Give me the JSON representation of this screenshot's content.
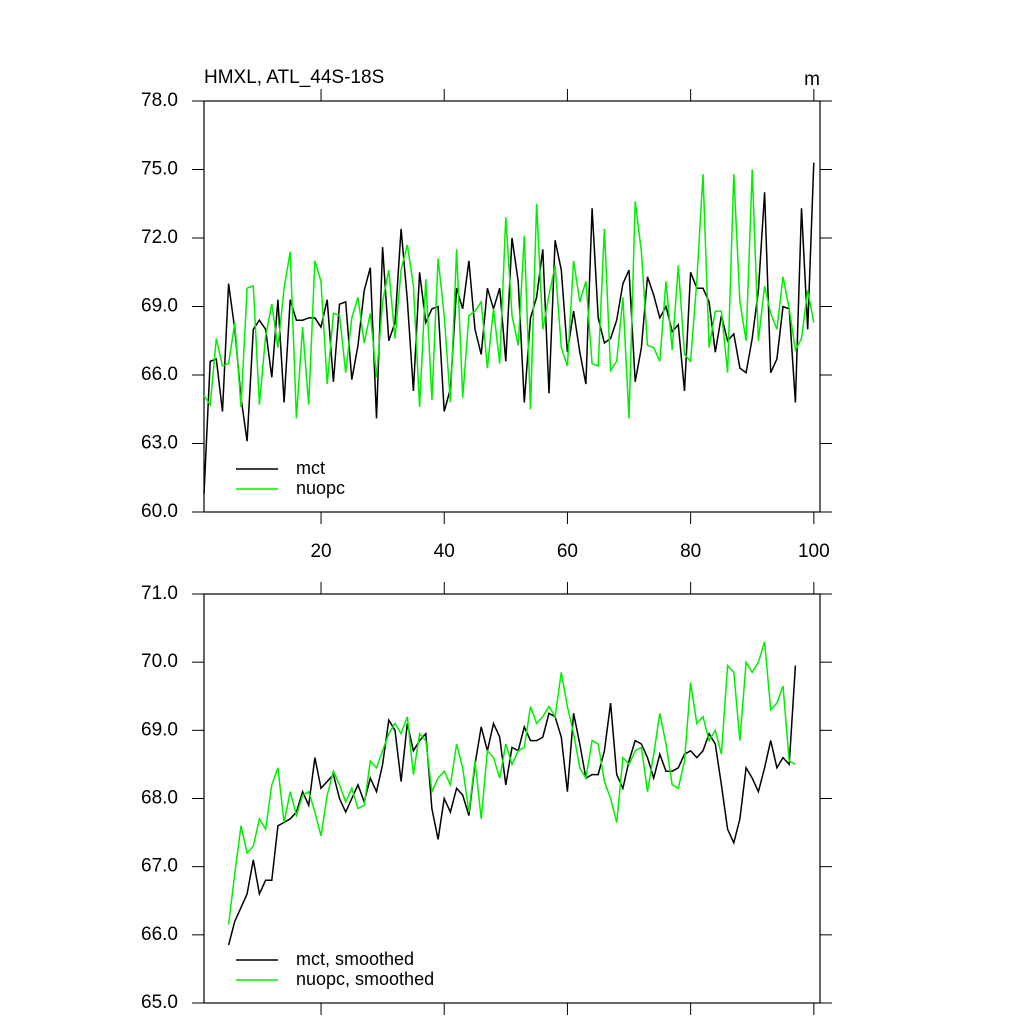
{
  "chart_data": [
    {
      "type": "line",
      "title": "HMXL, ATL_44S-18S",
      "units": "m",
      "x": [
        1,
        2,
        3,
        4,
        5,
        6,
        7,
        8,
        9,
        10,
        11,
        12,
        13,
        14,
        15,
        16,
        17,
        18,
        19,
        20,
        21,
        22,
        23,
        24,
        25,
        26,
        27,
        28,
        29,
        30,
        31,
        32,
        33,
        34,
        35,
        36,
        37,
        38,
        39,
        40,
        41,
        42,
        43,
        44,
        45,
        46,
        47,
        48,
        49,
        50,
        51,
        52,
        53,
        54,
        55,
        56,
        57,
        58,
        59,
        60,
        61,
        62,
        63,
        64,
        65,
        66,
        67,
        68,
        69,
        70,
        71,
        72,
        73,
        74,
        75,
        76,
        77,
        78,
        79,
        80,
        81,
        82,
        83,
        84,
        85,
        86,
        87,
        88,
        89,
        90,
        91,
        92,
        93,
        94,
        95,
        96,
        97,
        98,
        99,
        100
      ],
      "series": [
        {
          "name": "mct",
          "color": "#000000",
          "values": [
            60.8,
            66.6,
            66.7,
            64.4,
            70.0,
            68.0,
            65.0,
            63.1,
            68.0,
            68.4,
            68.0,
            65.9,
            69.3,
            64.8,
            69.3,
            68.4,
            68.4,
            68.5,
            68.5,
            68.1,
            69.3,
            65.7,
            69.1,
            69.2,
            65.8,
            67.3,
            69.7,
            70.7,
            64.1,
            71.6,
            67.5,
            68.3,
            72.4,
            69.3,
            65.3,
            70.5,
            68.3,
            68.9,
            69.0,
            64.4,
            65.4,
            69.8,
            68.9,
            71.0,
            68.0,
            66.9,
            69.8,
            68.9,
            69.8,
            66.6,
            72.0,
            70.1,
            64.8,
            68.5,
            69.4,
            71.5,
            65.2,
            71.9,
            70.6,
            67.0,
            68.8,
            67.0,
            65.6,
            73.3,
            68.5,
            67.4,
            67.6,
            68.4,
            70.0,
            70.6,
            65.7,
            67.2,
            70.3,
            69.5,
            68.5,
            69.0,
            67.9,
            68.2,
            65.3,
            70.5,
            69.8,
            69.8,
            69.2,
            67.0,
            68.6,
            67.5,
            67.8,
            66.3,
            66.1,
            67.6,
            69.7,
            74.0,
            66.1,
            66.7,
            69.0,
            68.9,
            64.8,
            73.3,
            68.0,
            75.3
          ]
        },
        {
          "name": "nuopc",
          "color": "#00ee00",
          "values": [
            65.1,
            64.7,
            67.6,
            66.4,
            66.5,
            68.3,
            64.6,
            69.8,
            69.9,
            64.7,
            67.7,
            69.1,
            67.2,
            69.8,
            71.4,
            64.1,
            68.1,
            64.7,
            71.0,
            70.1,
            65.6,
            68.7,
            68.6,
            66.1,
            68.5,
            69.4,
            67.4,
            68.7,
            65.9,
            69.2,
            70.6,
            67.6,
            70.6,
            71.7,
            69.9,
            64.6,
            70.2,
            64.9,
            71.1,
            68.6,
            64.8,
            71.5,
            65.0,
            68.6,
            68.8,
            69.2,
            66.3,
            68.9,
            66.5,
            72.9,
            68.6,
            67.3,
            72.1,
            64.5,
            73.5,
            68.0,
            69.5,
            70.8,
            67.2,
            66.4,
            71.0,
            69.2,
            70.1,
            66.5,
            66.4,
            72.4,
            66.2,
            66.6,
            69.4,
            64.1,
            73.6,
            71.4,
            67.3,
            67.2,
            66.6,
            70.1,
            67.1,
            70.8,
            66.9,
            66.6,
            70.1,
            74.8,
            67.2,
            68.8,
            68.8,
            66.1,
            74.8,
            69.2,
            67.5,
            75.0,
            67.5,
            69.9,
            68.7,
            68.0,
            70.3,
            68.9,
            67.1,
            67.6,
            69.7,
            68.3
          ]
        }
      ],
      "xlim": [
        1,
        101
      ],
      "xticks": [
        20,
        40,
        60,
        80,
        100
      ],
      "xtick_labels": true,
      "ylim": [
        60,
        78
      ],
      "yticks": [
        {
          "value": 60,
          "label": "60.0"
        },
        {
          "value": 63,
          "label": "63.0"
        },
        {
          "value": 66,
          "label": "66.0"
        },
        {
          "value": 69,
          "label": "69.0"
        },
        {
          "value": 72,
          "label": "72.0"
        },
        {
          "value": 75,
          "label": "75.0"
        },
        {
          "value": 78,
          "label": "78.0"
        }
      ],
      "legend": "lower left"
    },
    {
      "type": "line",
      "x": [
        5,
        6,
        7,
        8,
        9,
        10,
        11,
        12,
        13,
        14,
        15,
        16,
        17,
        18,
        19,
        20,
        21,
        22,
        23,
        24,
        25,
        26,
        27,
        28,
        29,
        30,
        31,
        32,
        33,
        34,
        35,
        36,
        37,
        38,
        39,
        40,
        41,
        42,
        43,
        44,
        45,
        46,
        47,
        48,
        49,
        50,
        51,
        52,
        53,
        54,
        55,
        56,
        57,
        58,
        59,
        60,
        61,
        62,
        63,
        64,
        65,
        66,
        67,
        68,
        69,
        70,
        71,
        72,
        73,
        74,
        75,
        76,
        77,
        78,
        79,
        80,
        81,
        82,
        83,
        84,
        85,
        86,
        87,
        88,
        89,
        90,
        91,
        92,
        93,
        94,
        95,
        96,
        97
      ],
      "series": [
        {
          "name": "mct, smoothed",
          "color": "#000000",
          "values": [
            65.85,
            66.2,
            66.4,
            66.6,
            67.1,
            66.6,
            66.8,
            66.8,
            67.6,
            67.65,
            67.7,
            67.8,
            68.1,
            67.9,
            68.6,
            68.15,
            68.25,
            68.35,
            68.0,
            67.8,
            68.0,
            68.2,
            67.95,
            68.3,
            68.1,
            68.5,
            69.15,
            69.0,
            68.25,
            69.1,
            68.7,
            68.85,
            68.95,
            67.85,
            67.4,
            68.0,
            67.8,
            68.15,
            68.05,
            67.75,
            68.5,
            69.05,
            68.7,
            69.1,
            68.9,
            68.2,
            68.75,
            68.7,
            69.05,
            68.85,
            68.85,
            68.9,
            69.25,
            69.2,
            68.9,
            68.1,
            69.25,
            68.8,
            68.3,
            68.35,
            68.35,
            68.7,
            69.4,
            68.35,
            68.15,
            68.55,
            68.85,
            68.8,
            68.6,
            68.3,
            68.65,
            68.4,
            68.4,
            68.45,
            68.65,
            68.7,
            68.6,
            68.7,
            68.95,
            68.8,
            68.2,
            67.55,
            67.35,
            67.7,
            68.45,
            68.3,
            68.1,
            68.45,
            68.85,
            68.45,
            68.6,
            68.5,
            69.95
          ]
        },
        {
          "name": "nuopc, smoothed",
          "color": "#00ee00",
          "values": [
            66.15,
            66.9,
            67.6,
            67.2,
            67.3,
            67.7,
            67.55,
            68.2,
            68.45,
            67.65,
            68.1,
            67.75,
            68.05,
            68.1,
            67.8,
            67.45,
            68.05,
            68.4,
            68.2,
            67.95,
            68.15,
            67.85,
            67.9,
            68.55,
            68.45,
            68.7,
            68.95,
            69.1,
            68.95,
            69.2,
            68.35,
            68.95,
            68.85,
            68.1,
            68.3,
            68.4,
            68.2,
            68.8,
            68.45,
            67.8,
            68.55,
            67.7,
            68.7,
            68.6,
            68.3,
            68.8,
            68.5,
            68.7,
            68.75,
            69.35,
            69.1,
            69.2,
            69.35,
            69.2,
            69.85,
            69.35,
            68.95,
            68.45,
            68.3,
            68.85,
            68.8,
            68.25,
            68.0,
            67.65,
            68.6,
            68.5,
            68.7,
            68.75,
            68.1,
            68.65,
            69.25,
            68.8,
            68.2,
            68.15,
            68.55,
            69.7,
            69.1,
            69.2,
            68.85,
            69.0,
            68.65,
            69.95,
            69.85,
            68.85,
            70.0,
            69.85,
            70.0,
            70.3,
            69.3,
            69.4,
            69.65,
            68.55,
            68.5
          ]
        }
      ],
      "xlim": [
        1,
        101
      ],
      "xticks": [
        20,
        40,
        60,
        80,
        100
      ],
      "xtick_labels": false,
      "ylim": [
        65,
        71
      ],
      "yticks": [
        {
          "value": 65,
          "label": "65.0"
        },
        {
          "value": 66,
          "label": "66.0"
        },
        {
          "value": 67,
          "label": "67.0"
        },
        {
          "value": 68,
          "label": "68.0"
        },
        {
          "value": 69,
          "label": "69.0"
        },
        {
          "value": 70,
          "label": "70.0"
        },
        {
          "value": 71,
          "label": "71.0"
        }
      ],
      "legend": "lower left"
    }
  ]
}
